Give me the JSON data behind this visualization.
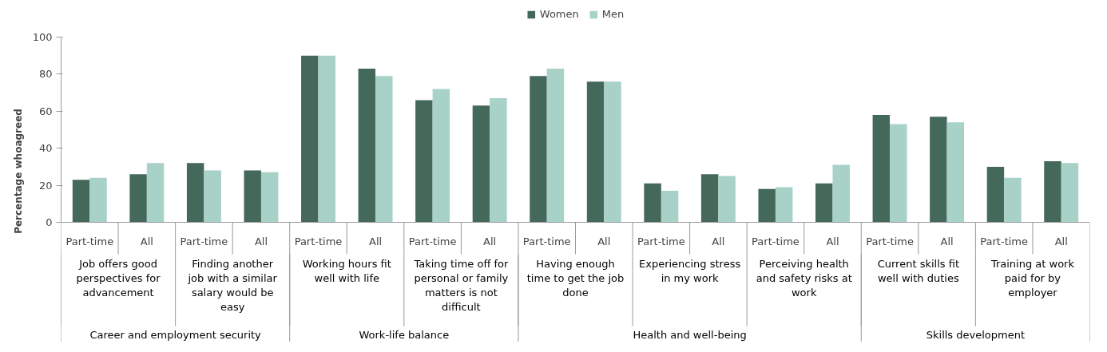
{
  "chart_data": {
    "type": "bar",
    "ylabel": "Percentage whoagreed",
    "ylim": [
      0,
      100
    ],
    "yticks": [
      0,
      20,
      40,
      60,
      80,
      100
    ],
    "grid": false,
    "legend": "top",
    "categories": [
      "Part-time",
      "All",
      "Part-time",
      "All",
      "Part-time",
      "All",
      "Part-time",
      "All",
      "Part-time",
      "All",
      "Part-time",
      "All",
      "Part-time",
      "All",
      "Part-time",
      "All",
      "Part-time",
      "All"
    ],
    "series": [
      {
        "name": "Women",
        "color": "#44695a",
        "values": [
          23,
          26,
          32,
          28,
          90,
          83,
          66,
          63,
          79,
          76,
          21,
          26,
          18,
          21,
          58,
          57,
          30,
          33
        ]
      },
      {
        "name": "Men",
        "color": "#a8d1c8",
        "values": [
          24,
          32,
          28,
          27,
          90,
          79,
          72,
          67,
          83,
          76,
          17,
          25,
          19,
          31,
          53,
          54,
          24,
          32
        ]
      }
    ],
    "annotations": [
      "Job offers good\nperspectives for\nadvancement",
      "Finding another\njob with a similar\nsalary would be\neasy",
      "Working hours fit\nwell with life",
      "Taking time off for\npersonal or family\nmatters is not\ndifficult",
      "Having enough\ntime to get the job\ndone",
      "Experiencing stress\nin my work",
      "Perceiving health\nand safety risks at\nwork",
      "Current skills fit\nwell with duties",
      "Training at work\npaid for by\nemployer",
      "Career and employment security",
      "Work-life balance",
      "Health and well-being",
      "Skills development"
    ]
  }
}
